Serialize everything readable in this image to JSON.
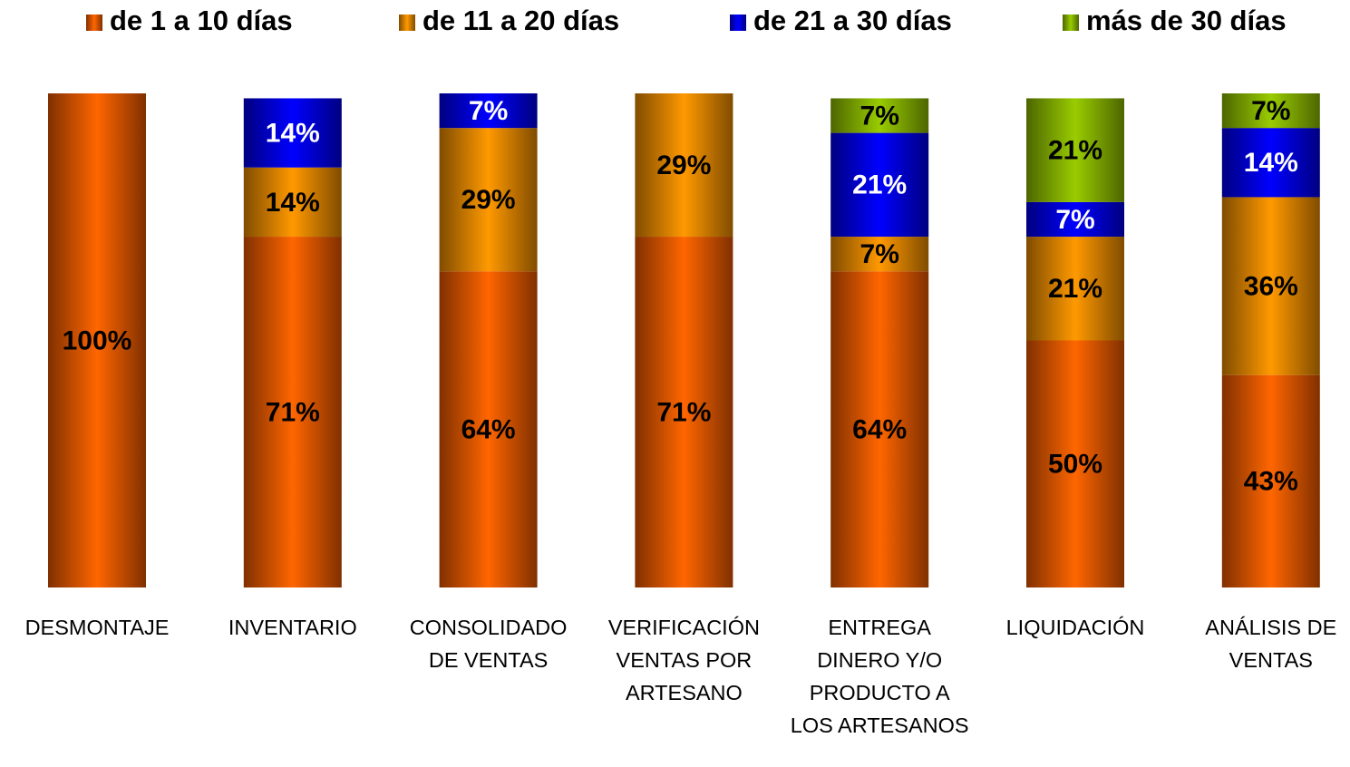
{
  "chart_data": {
    "type": "stacked_bar",
    "categories": [
      "DESMONTAJE",
      "INVENTARIO",
      "CONSOLIDADO DE VENTAS",
      "VERIFICACIÓN VENTAS POR ARTESANO",
      "ENTREGA DINERO Y/O PRODUCTO A LOS ARTESANOS",
      "LIQUIDACIÓN",
      "ANÁLISIS DE VENTAS"
    ],
    "series": [
      {
        "name": "de 1 a 10 días",
        "color": "#ff6600",
        "edge_color": "#803000",
        "label_color": "#000000",
        "values": [
          100,
          71,
          64,
          71,
          64,
          50,
          43
        ],
        "value_labels": [
          "100%",
          "71%",
          "64%",
          "71%",
          "64%",
          "50%",
          "43%"
        ]
      },
      {
        "name": "de 11 a 20 días",
        "color": "#ff9900",
        "edge_color": "#804c00",
        "label_color": "#000000",
        "values": [
          0,
          14,
          29,
          29,
          7,
          21,
          36
        ],
        "value_labels": [
          null,
          "14%",
          "29%",
          "29%",
          "7%",
          "21%",
          "36%"
        ]
      },
      {
        "name": "de 21 a 30 días",
        "color": "#0000ff",
        "edge_color": "#000080",
        "label_color": "#ffffff",
        "values": [
          0,
          14,
          7,
          0,
          21,
          7,
          14
        ],
        "value_labels": [
          null,
          "14%",
          "7%",
          null,
          "21%",
          "7%",
          "14%"
        ]
      },
      {
        "name": "más de 30 días",
        "color": "#99cc00",
        "edge_color": "#4d6600",
        "label_color": "#000000",
        "values": [
          0,
          0,
          0,
          0,
          7,
          21,
          7
        ],
        "value_labels": [
          null,
          null,
          null,
          null,
          "7%",
          "21%",
          "7%"
        ]
      }
    ],
    "ylim": [
      0,
      100
    ],
    "legend": "top"
  }
}
